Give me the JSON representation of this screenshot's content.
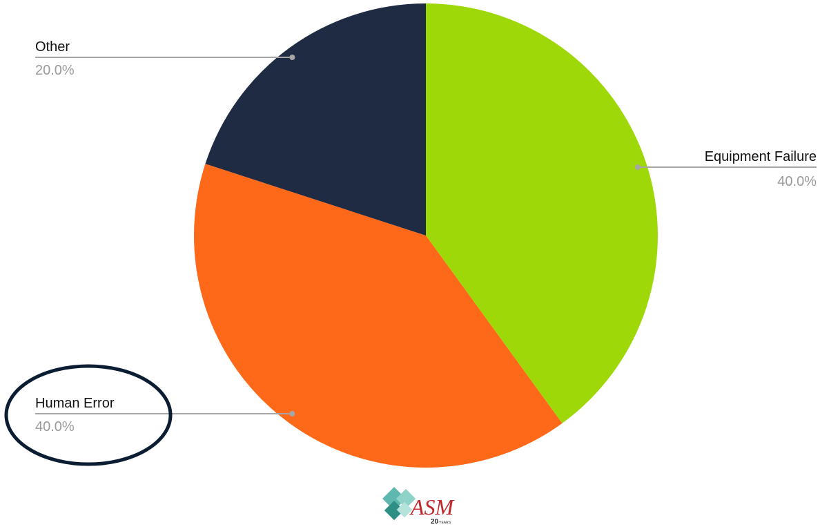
{
  "chart_data": {
    "type": "pie",
    "slices": [
      {
        "label": "Equipment Failure",
        "value": 40.0,
        "percent_label": "40.0%",
        "color": "#9fd808"
      },
      {
        "label": "Human Error",
        "value": 40.0,
        "percent_label": "40.0%",
        "color": "#fe6819"
      },
      {
        "label": "Other",
        "value": 20.0,
        "percent_label": "20.0%",
        "color": "#1e2b42"
      }
    ],
    "start_angle": "12 o'clock",
    "direction": "clockwise",
    "highlighted_slice": "Human Error",
    "highlight_color": "#0b1d33"
  },
  "logo": {
    "text": "ASM",
    "badge": "20",
    "badge_suffix": "YEARS",
    "diamond_colors": [
      "#5fb8b0",
      "#8fd3c8",
      "#2e8f87",
      "#b5e3dc"
    ]
  }
}
